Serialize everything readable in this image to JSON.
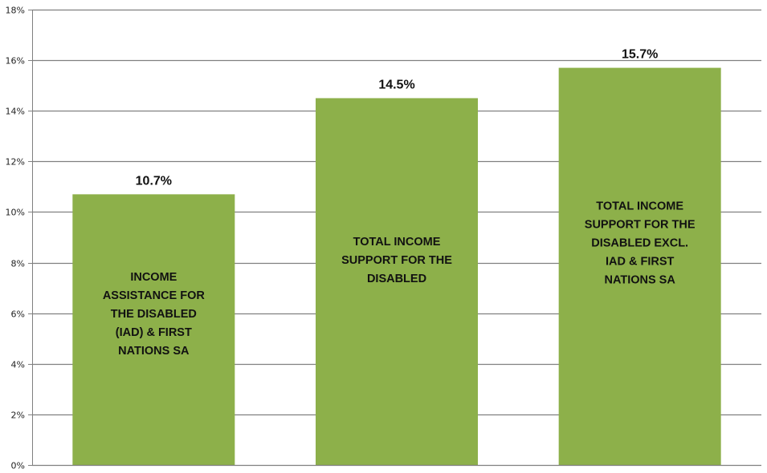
{
  "chart_data": {
    "type": "bar",
    "categories": [
      "INCOME ASSISTANCE FOR THE DISABLED (IAD) & FIRST NATIONS SA",
      "TOTAL INCOME SUPPORT FOR THE DISABLED",
      "TOTAL INCOME SUPPORT FOR THE DISABLED EXCL. IAD & FIRST NATIONS SA"
    ],
    "category_label_lines": [
      [
        "INCOME",
        "ASSISTANCE FOR",
        "THE DISABLED",
        "(IAD) & FIRST",
        "NATIONS SA"
      ],
      [
        "TOTAL INCOME",
        "SUPPORT FOR THE",
        "DISABLED"
      ],
      [
        "TOTAL INCOME",
        "SUPPORT FOR THE",
        "DISABLED EXCL.",
        "IAD & FIRST",
        "NATIONS SA"
      ]
    ],
    "values": [
      10.7,
      14.5,
      15.7
    ],
    "data_labels": [
      "10.7%",
      "14.5%",
      "15.7%"
    ],
    "title": "",
    "xlabel": "",
    "ylabel": "",
    "ylim": [
      0,
      18
    ],
    "yticks": [
      0,
      2,
      4,
      6,
      8,
      10,
      12,
      14,
      16,
      18
    ],
    "ytick_labels": [
      "0%",
      "2%",
      "4%",
      "6%",
      "8%",
      "10%",
      "12%",
      "14%",
      "16%",
      "18%"
    ],
    "grid": true,
    "legend": "none",
    "colors": {
      "bar": "#8db04a",
      "grid": "#808080",
      "axis": "#808080"
    }
  }
}
